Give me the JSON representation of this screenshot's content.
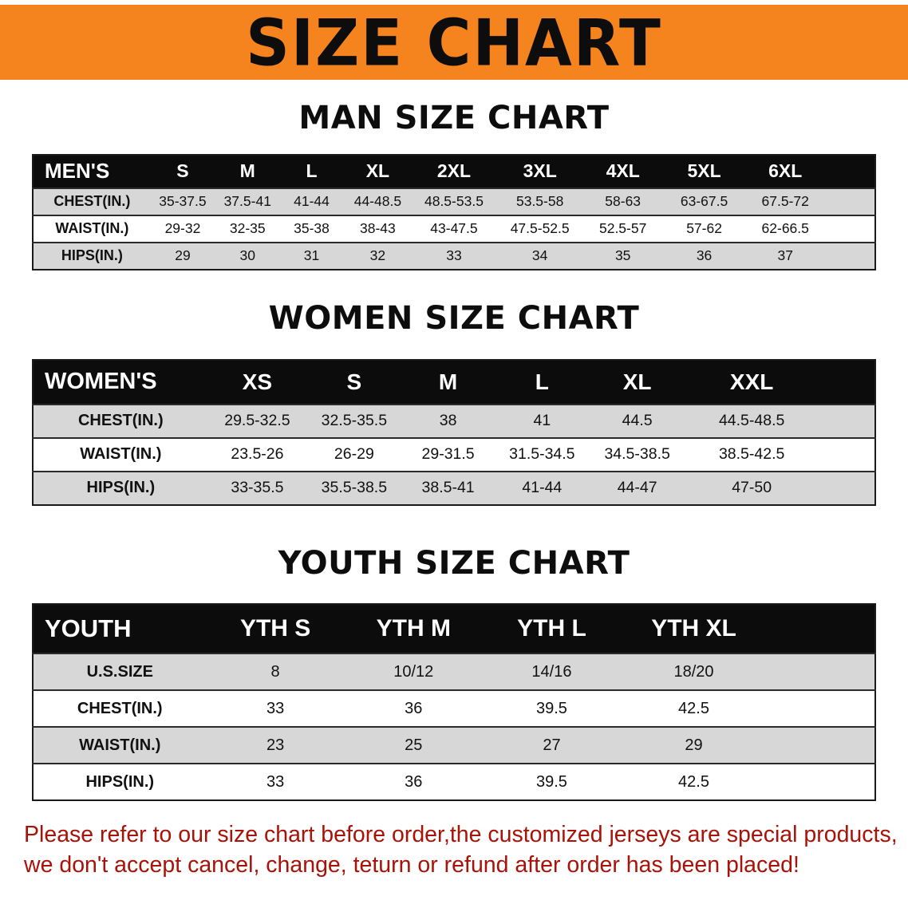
{
  "banner": {
    "title": "SIZE CHART"
  },
  "sections": {
    "men": {
      "heading": "MAN SIZE CHART",
      "corner": "MEN'S",
      "columns": [
        "S",
        "M",
        "L",
        "XL",
        "2XL",
        "3XL",
        "4XL",
        "5XL",
        "6XL"
      ],
      "rows": [
        {
          "label": "CHEST(IN.)",
          "values": [
            "35-37.5",
            "37.5-41",
            "41-44",
            "44-48.5",
            "48.5-53.5",
            "53.5-58",
            "58-63",
            "63-67.5",
            "67.5-72"
          ]
        },
        {
          "label": "WAIST(IN.)",
          "values": [
            "29-32",
            "32-35",
            "35-38",
            "38-43",
            "43-47.5",
            "47.5-52.5",
            "52.5-57",
            "57-62",
            "62-66.5"
          ]
        },
        {
          "label": "HIPS(IN.)",
          "values": [
            "29",
            "30",
            "31",
            "32",
            "33",
            "34",
            "35",
            "36",
            "37"
          ]
        }
      ]
    },
    "women": {
      "heading": "WOMEN SIZE CHART",
      "corner": "WOMEN'S",
      "columns": [
        "XS",
        "S",
        "M",
        "L",
        "XL",
        "XXL"
      ],
      "rows": [
        {
          "label": "CHEST(IN.)",
          "values": [
            "29.5-32.5",
            "32.5-35.5",
            "38",
            "41",
            "44.5",
            "44.5-48.5"
          ]
        },
        {
          "label": "WAIST(IN.)",
          "values": [
            "23.5-26",
            "26-29",
            "29-31.5",
            "31.5-34.5",
            "34.5-38.5",
            "38.5-42.5"
          ]
        },
        {
          "label": "HIPS(IN.)",
          "values": [
            "33-35.5",
            "35.5-38.5",
            "38.5-41",
            "41-44",
            "44-47",
            "47-50"
          ]
        }
      ]
    },
    "youth": {
      "heading": "YOUTH SIZE CHART",
      "corner": "YOUTH",
      "columns": [
        "YTH S",
        "YTH M",
        "YTH L",
        "YTH XL"
      ],
      "rows": [
        {
          "label": "U.S.SIZE",
          "values": [
            "8",
            "10/12",
            "14/16",
            "18/20"
          ]
        },
        {
          "label": "CHEST(IN.)",
          "values": [
            "33",
            "36",
            "39.5",
            "42.5"
          ]
        },
        {
          "label": "WAIST(IN.)",
          "values": [
            "23",
            "25",
            "27",
            "29"
          ]
        },
        {
          "label": "HIPS(IN.)",
          "values": [
            "33",
            "36",
            "39.5",
            "42.5"
          ]
        }
      ]
    }
  },
  "notice": {
    "line1": "Please refer to our size chart before order,the customized jerseys are special products,",
    "line2": "we don't accept cancel, change, teturn or refund after order has been placed!"
  },
  "colors": {
    "banner_bg": "#f5831e",
    "header_bg": "#0c0c0c",
    "row_alt_bg": "#d7d7d7",
    "notice": "#a81208"
  }
}
